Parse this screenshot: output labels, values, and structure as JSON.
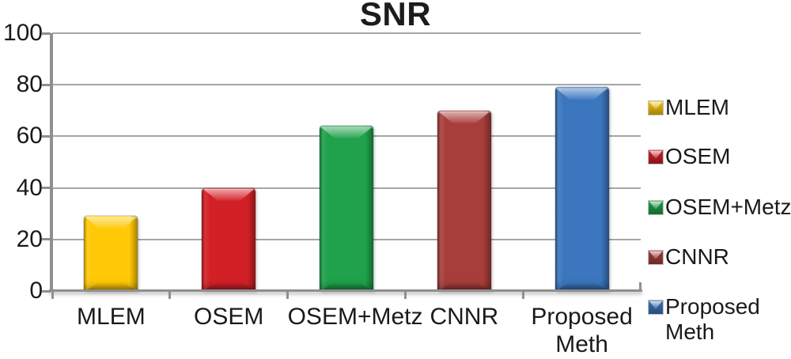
{
  "chart_data": {
    "type": "bar",
    "title": "SNR",
    "categories": [
      "MLEM",
      "OSEM",
      "OSEM+Metz",
      "CNNR",
      "Proposed Meth"
    ],
    "values": [
      29,
      40,
      64,
      70,
      79
    ],
    "bar_colors": [
      "#FFC907",
      "#D22027",
      "#1FA24B",
      "#A83E3B",
      "#3B76BE"
    ],
    "xlabel": "",
    "ylabel": "",
    "ylim": [
      0,
      100
    ],
    "y_ticks": [
      0,
      20,
      40,
      60,
      80,
      100
    ],
    "grid": true,
    "legend_position": "right",
    "legend": [
      {
        "label": "MLEM",
        "color": "#FFC907"
      },
      {
        "label": "OSEM",
        "color": "#D22027"
      },
      {
        "label": "OSEM+Metz",
        "color": "#1FA24B"
      },
      {
        "label": "CNNR",
        "color": "#A83E3B"
      },
      {
        "label": "Proposed Meth",
        "color": "#3B76BE"
      }
    ],
    "gridline_color": "#A6A6A6",
    "axis_color": "#8F8F8F",
    "text_color": "#1A1A1A"
  }
}
